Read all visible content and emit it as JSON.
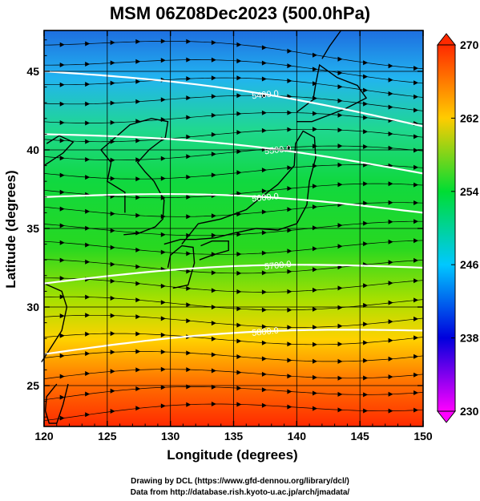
{
  "title": "MSM 06Z08Dec2023 (500.0hPa)",
  "x_axis": {
    "label": "Longitude (degrees)",
    "range": [
      120,
      150
    ],
    "ticks": [
      "120",
      "125",
      "130",
      "135",
      "140",
      "145",
      "150"
    ]
  },
  "y_axis": {
    "label": "Latitude  (degrees)",
    "range": [
      22.4,
      47.6
    ],
    "ticks": [
      "25",
      "30",
      "35",
      "40",
      "45"
    ]
  },
  "colorbar": {
    "range": [
      230,
      270
    ],
    "ticks": [
      "230",
      "238",
      "246",
      "254",
      "262",
      "270"
    ],
    "colors": [
      "#ff00ff",
      "#0000dd",
      "#00c8ff",
      "#00dd33",
      "#ffcc00",
      "#ff2a00"
    ]
  },
  "contours": [
    {
      "label": "5400.0",
      "lat_at_west": 45.0,
      "lat_at_east": 41.5
    },
    {
      "label": "5500.0",
      "lat_at_west": 41.0,
      "lat_at_east": 38.5
    },
    {
      "label": "5600.0",
      "lat_at_west": 37.0,
      "lat_at_east": 36.0
    },
    {
      "label": "5700.0",
      "lat_at_west": 31.5,
      "lat_at_east": 32.5
    },
    {
      "label": "5800.0",
      "lat_at_west": 27.0,
      "lat_at_east": 28.5
    }
  ],
  "credits": [
    "Drawing by DCL (https://www.gfd-dennou.org/library/dcl/)",
    "Data from http://database.rish.kyoto-u.ac.jp/arch/jmadata/"
  ]
}
